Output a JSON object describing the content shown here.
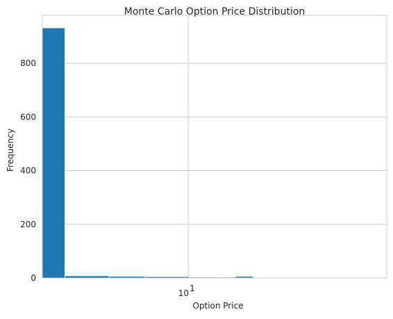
{
  "chart_data": {
    "type": "bar",
    "title": "Monte Carlo Option Price Distribution",
    "xlabel": "Option Price",
    "ylabel": "Frequency",
    "x_scale": "log",
    "xlim": [
      4.9,
      26.4
    ],
    "ylim": [
      0,
      979
    ],
    "grid": true,
    "x_ticks": [
      {
        "value": 10,
        "base": "10",
        "exponent": "1"
      }
    ],
    "y_ticks": [
      0,
      200,
      400,
      600,
      800
    ],
    "bins": [
      {
        "x0": 4.9,
        "x1": 5.47,
        "count": 932
      },
      {
        "x0": 5.47,
        "x1": 6.79,
        "count": 8
      },
      {
        "x0": 6.79,
        "x1": 8.08,
        "count": 6
      },
      {
        "x0": 8.08,
        "x1": 10.04,
        "count": 5
      },
      {
        "x0": 10.04,
        "x1": 11.53,
        "count": 3
      },
      {
        "x0": 11.53,
        "x1": 12.59,
        "count": 3
      },
      {
        "x0": 12.59,
        "x1": 13.74,
        "count": 6
      }
    ],
    "bar_color": "#1f77b4",
    "grid_color": "#cccccc"
  }
}
